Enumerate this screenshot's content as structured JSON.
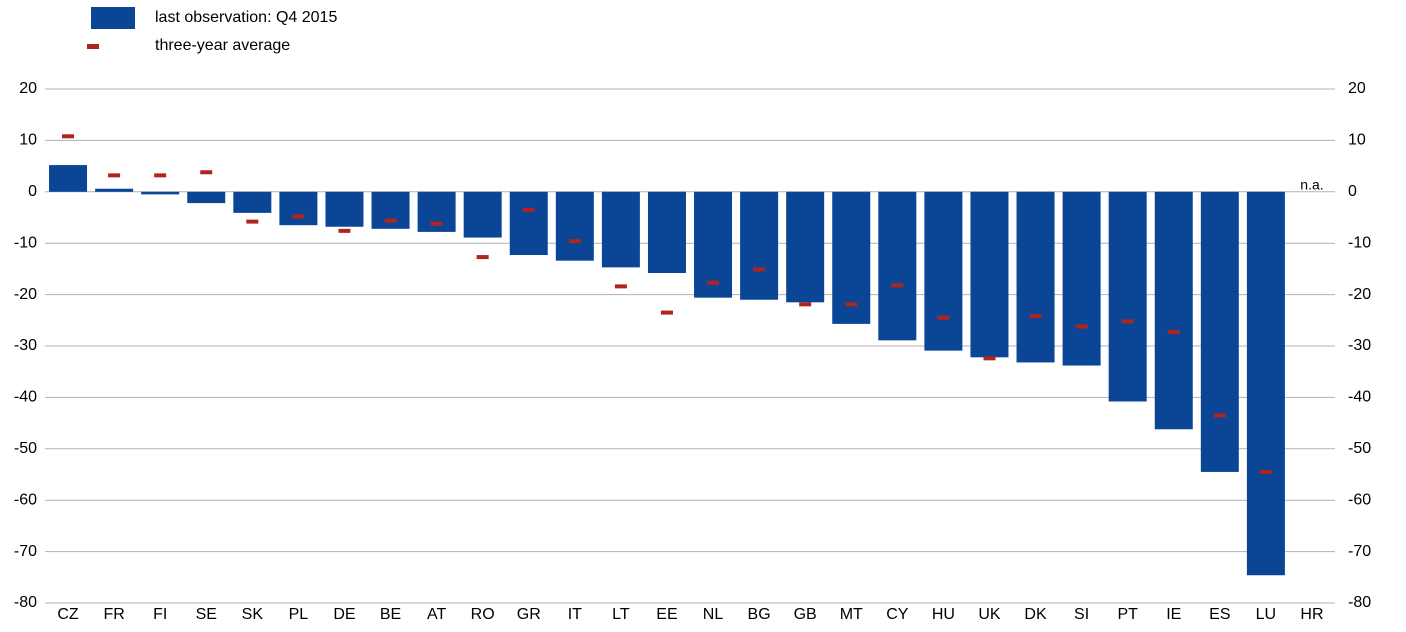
{
  "chart_data": {
    "type": "bar",
    "categories": [
      "CZ",
      "FR",
      "FI",
      "SE",
      "SK",
      "PL",
      "DE",
      "BE",
      "AT",
      "RO",
      "GR",
      "IT",
      "LT",
      "EE",
      "NL",
      "BG",
      "GB",
      "MT",
      "CY",
      "HU",
      "UK",
      "DK",
      "SI",
      "PT",
      "IE",
      "ES",
      "LU",
      "HR"
    ],
    "series": [
      {
        "name": "last observation: Q4 2015",
        "color": "#0b4596",
        "kind": "bar",
        "values": [
          5.2,
          0.6,
          -0.5,
          -2.2,
          -4.1,
          -6.5,
          -6.8,
          -7.2,
          -7.8,
          -8.9,
          -12.3,
          -13.4,
          -14.7,
          -15.8,
          -20.6,
          -21.0,
          -21.5,
          -25.7,
          -28.9,
          -30.9,
          -32.2,
          -33.2,
          -33.8,
          -40.8,
          -46.2,
          -54.5,
          -74.6,
          null
        ]
      },
      {
        "name": "three-year average",
        "color": "#b0241c",
        "kind": "dash",
        "values": [
          10.8,
          3.2,
          3.2,
          3.8,
          -5.8,
          -4.8,
          -7.6,
          -5.6,
          -6.2,
          -12.7,
          -3.5,
          -9.6,
          -18.4,
          -23.5,
          -17.7,
          -15.1,
          -21.9,
          -21.9,
          -18.2,
          -24.5,
          -32.4,
          -24.2,
          -26.2,
          -25.2,
          -27.3,
          -43.5,
          -54.5,
          null
        ]
      }
    ],
    "annotation": "n.a.",
    "ylim": [
      -80,
      20
    ],
    "yticks": [
      20,
      10,
      0,
      -10,
      -20,
      -30,
      -40,
      -50,
      -60,
      -70,
      -80
    ],
    "y2lim": [
      -80,
      20
    ],
    "y2ticks": [
      20,
      10,
      0,
      -10,
      -20,
      -30,
      -40,
      -50,
      -60,
      -70,
      -80
    ],
    "grid": true
  }
}
